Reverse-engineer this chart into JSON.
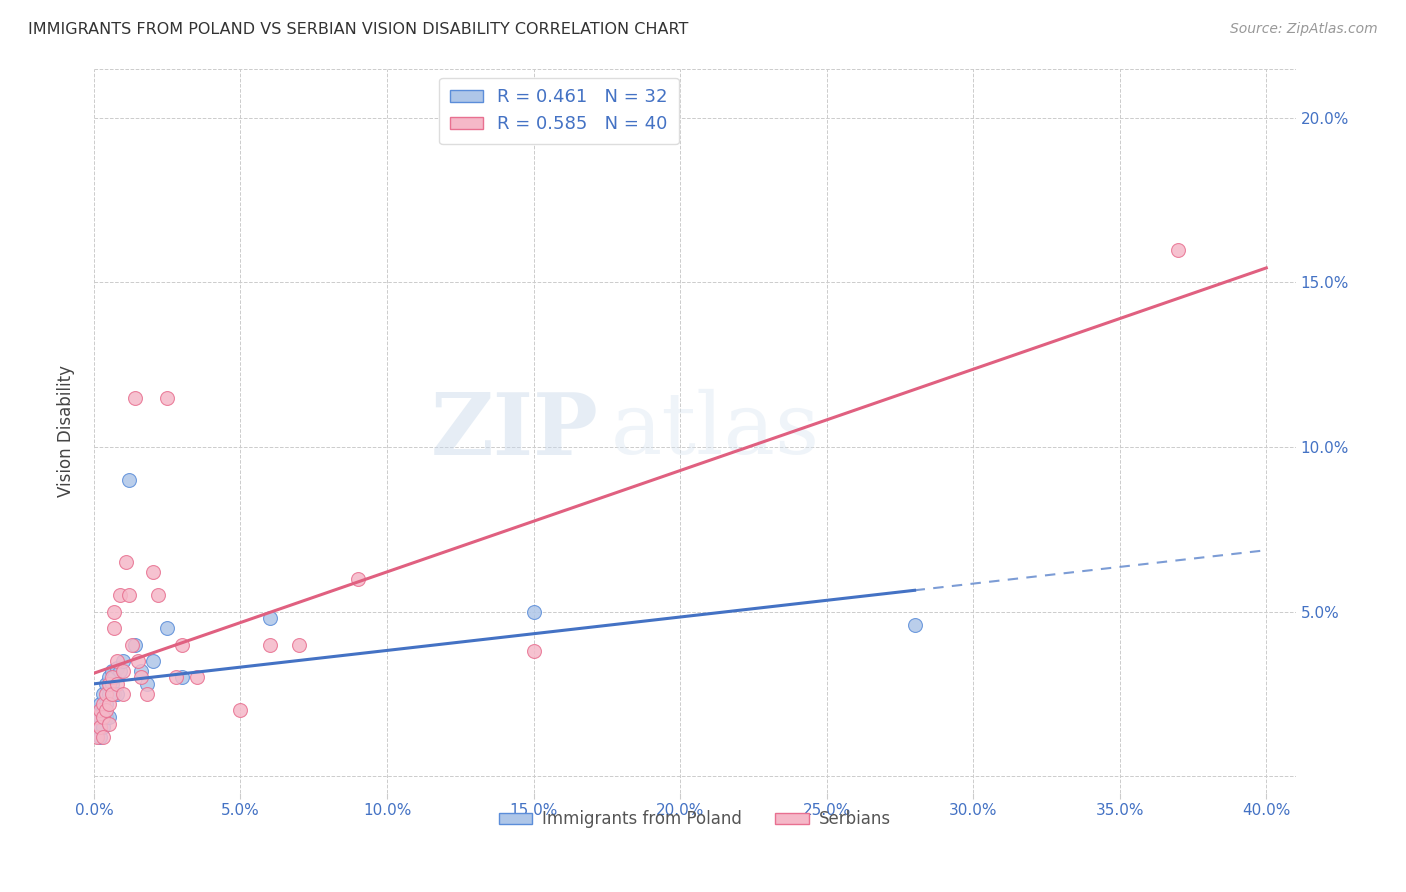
{
  "title": "IMMIGRANTS FROM POLAND VS SERBIAN VISION DISABILITY CORRELATION CHART",
  "source": "Source: ZipAtlas.com",
  "ylabel": "Vision Disability",
  "ytick_vals": [
    0.0,
    0.05,
    0.1,
    0.15,
    0.2
  ],
  "ytick_labels": [
    "",
    "5.0%",
    "10.0%",
    "15.0%",
    "20.0%"
  ],
  "xtick_vals": [
    0.0,
    0.05,
    0.1,
    0.15,
    0.2,
    0.25,
    0.3,
    0.35,
    0.4
  ],
  "xlim": [
    0.0,
    0.41
  ],
  "ylim": [
    -0.005,
    0.215
  ],
  "poland_R": "0.461",
  "poland_N": "32",
  "serbian_R": "0.585",
  "serbian_N": "40",
  "poland_color": "#aec6e8",
  "serbian_color": "#f5b8c8",
  "poland_edge_color": "#5b8dd9",
  "serbian_edge_color": "#e87090",
  "poland_line_color": "#4472c4",
  "serbian_line_color": "#e06080",
  "legend_label_1": "Immigrants from Poland",
  "legend_label_2": "Serbians",
  "watermark_zip": "ZIP",
  "watermark_atlas": "atlas",
  "poland_x": [
    0.001,
    0.001,
    0.002,
    0.002,
    0.002,
    0.003,
    0.003,
    0.003,
    0.004,
    0.004,
    0.004,
    0.005,
    0.005,
    0.005,
    0.006,
    0.006,
    0.007,
    0.007,
    0.008,
    0.008,
    0.009,
    0.01,
    0.012,
    0.014,
    0.016,
    0.018,
    0.02,
    0.025,
    0.03,
    0.06,
    0.15,
    0.28
  ],
  "poland_y": [
    0.02,
    0.015,
    0.018,
    0.022,
    0.012,
    0.025,
    0.02,
    0.015,
    0.028,
    0.022,
    0.018,
    0.03,
    0.025,
    0.018,
    0.032,
    0.028,
    0.03,
    0.025,
    0.033,
    0.025,
    0.032,
    0.035,
    0.09,
    0.04,
    0.032,
    0.028,
    0.035,
    0.045,
    0.03,
    0.048,
    0.05,
    0.046
  ],
  "serbian_x": [
    0.001,
    0.001,
    0.002,
    0.002,
    0.003,
    0.003,
    0.003,
    0.004,
    0.004,
    0.005,
    0.005,
    0.005,
    0.006,
    0.006,
    0.007,
    0.007,
    0.008,
    0.008,
    0.009,
    0.01,
    0.01,
    0.011,
    0.012,
    0.013,
    0.014,
    0.015,
    0.016,
    0.018,
    0.02,
    0.022,
    0.025,
    0.028,
    0.03,
    0.035,
    0.05,
    0.06,
    0.07,
    0.09,
    0.15,
    0.37
  ],
  "serbian_y": [
    0.018,
    0.012,
    0.02,
    0.015,
    0.022,
    0.018,
    0.012,
    0.025,
    0.02,
    0.028,
    0.022,
    0.016,
    0.03,
    0.025,
    0.05,
    0.045,
    0.035,
    0.028,
    0.055,
    0.032,
    0.025,
    0.065,
    0.055,
    0.04,
    0.115,
    0.035,
    0.03,
    0.025,
    0.062,
    0.055,
    0.115,
    0.03,
    0.04,
    0.03,
    0.02,
    0.04,
    0.04,
    0.06,
    0.038,
    0.16
  ]
}
